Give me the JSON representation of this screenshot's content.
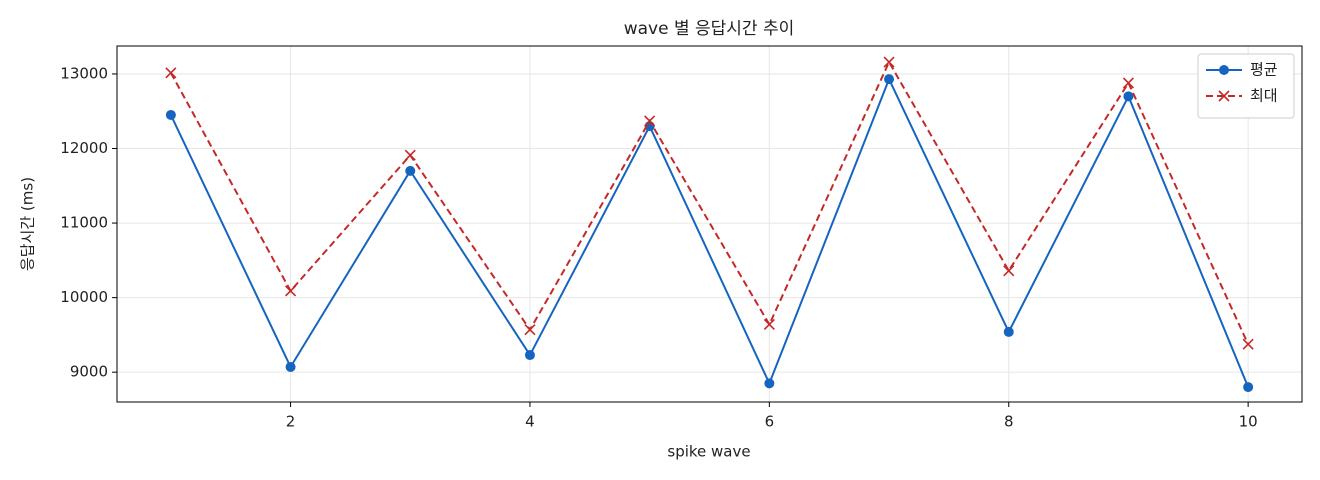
{
  "chart_data": {
    "type": "line",
    "title": "wave 별 응답시간 추이",
    "xlabel": "spike wave",
    "ylabel": "응답시간 (ms)",
    "x": [
      1,
      2,
      3,
      4,
      5,
      6,
      7,
      8,
      9,
      10
    ],
    "series": [
      {
        "name": "평균",
        "color": "#1565c0",
        "linestyle": "solid",
        "marker": "o",
        "values": [
          12450,
          9070,
          11700,
          9230,
          12300,
          8850,
          12930,
          9540,
          12700,
          8800
        ]
      },
      {
        "name": "최대",
        "color": "#c62828",
        "linestyle": "dashed",
        "marker": "x",
        "values": [
          13015,
          10090,
          11910,
          9570,
          12370,
          9640,
          13160,
          10360,
          12880,
          9375
        ]
      }
    ],
    "xlim": [
      0.55,
      10.45
    ],
    "ylim": [
      8600,
      13375
    ],
    "xticks": [
      2,
      4,
      6,
      8,
      10
    ],
    "yticks": [
      9000,
      10000,
      11000,
      12000,
      13000
    ],
    "grid": true,
    "legend": "upper right"
  }
}
